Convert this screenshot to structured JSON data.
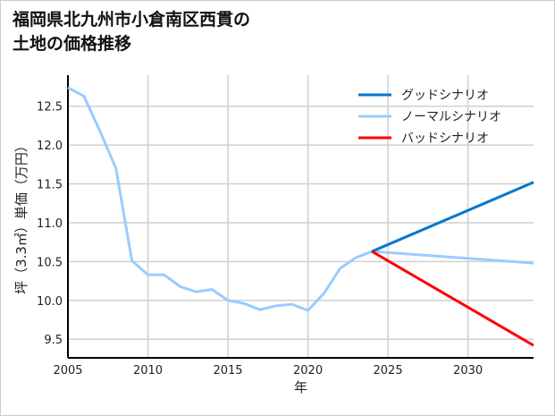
{
  "chart_data": {
    "type": "line",
    "title_lines": [
      "福岡県北九州市小倉南区西貫の",
      "土地の価格推移"
    ],
    "xlabel": "年",
    "ylabel": "坪（3.3㎡）単価（万円）",
    "xlim": [
      2005,
      2034.1
    ],
    "ylim": [
      9.26,
      12.9
    ],
    "xticks": [
      2005,
      2010,
      2015,
      2020,
      2025,
      2030
    ],
    "yticks": [
      9.5,
      10.0,
      10.5,
      11.0,
      11.5,
      12.0,
      12.5
    ],
    "grid": true,
    "legend_position": "top-right",
    "series": [
      {
        "name": "グッドシナリオ",
        "color": "#0077cc",
        "x": [
          2024,
          2034.1
        ],
        "y": [
          10.63,
          11.52
        ]
      },
      {
        "name": "ノーマルシナリオ",
        "color": "#99ccff",
        "x": [
          2005,
          2006,
          2007,
          2008,
          2009,
          2010,
          2011,
          2012,
          2013,
          2014,
          2015,
          2016,
          2017,
          2018,
          2019,
          2020,
          2021,
          2022,
          2023,
          2024,
          2034.1
        ],
        "y": [
          12.74,
          12.63,
          12.18,
          11.7,
          10.51,
          10.33,
          10.33,
          10.18,
          10.11,
          10.14,
          10.0,
          9.96,
          9.88,
          9.93,
          9.95,
          9.87,
          10.09,
          10.41,
          10.55,
          10.63,
          10.48
        ]
      },
      {
        "name": "バッドシナリオ",
        "color": "#ff0000",
        "x": [
          2024,
          2034.1
        ],
        "y": [
          10.63,
          9.42
        ]
      }
    ]
  }
}
